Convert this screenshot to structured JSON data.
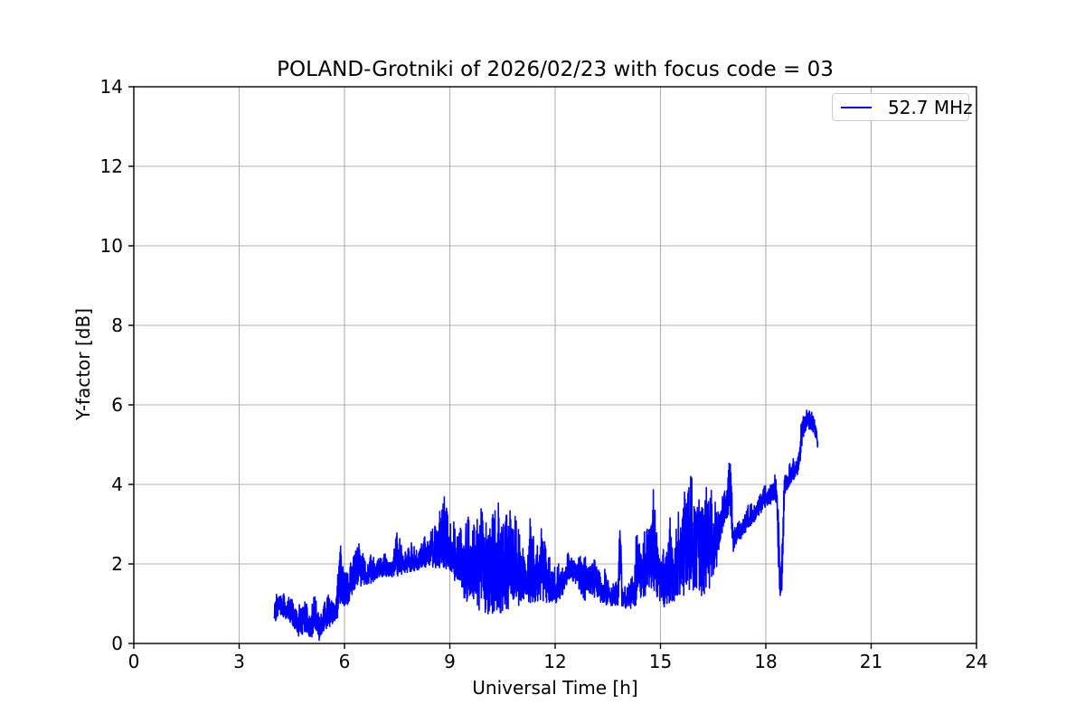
{
  "chart_data": {
    "type": "line",
    "title": "POLAND-Grotniki of 2026/02/23 with focus code = 03",
    "xlabel": "Universal Time [h]",
    "ylabel": "Y-factor [dB]",
    "xlim": [
      0,
      24
    ],
    "ylim": [
      0,
      14
    ],
    "x_ticks": [
      0,
      3,
      6,
      9,
      12,
      15,
      18,
      21,
      24
    ],
    "y_ticks": [
      0,
      2,
      4,
      6,
      8,
      10,
      12,
      14
    ],
    "grid": true,
    "grid_color": "#b0b0b0",
    "background_color": "#ffffff",
    "legend_position": "upper right",
    "series": [
      {
        "name": "52.7 MHz",
        "color": "#0000ff",
        "x_start": 4.0,
        "x_end": 19.48,
        "envelope_format": "[time_h, min_dB, max_dB] — rapidly oscillating noisy signal filling the band between min and max",
        "envelope": [
          [
            4.0,
            0.45,
            1.45
          ],
          [
            4.15,
            0.75,
            1.3
          ],
          [
            4.3,
            0.6,
            1.3
          ],
          [
            4.5,
            0.5,
            1.25
          ],
          [
            4.7,
            0.15,
            1.1
          ],
          [
            4.9,
            0.3,
            1.1
          ],
          [
            5.05,
            0.05,
            0.9
          ],
          [
            5.15,
            0.4,
            1.35
          ],
          [
            5.3,
            0.02,
            0.95
          ],
          [
            5.45,
            0.3,
            1.2
          ],
          [
            5.6,
            0.4,
            1.25
          ],
          [
            5.78,
            0.55,
            1.35
          ],
          [
            5.88,
            1.0,
            3.08
          ],
          [
            5.95,
            0.9,
            1.95
          ],
          [
            6.1,
            0.95,
            1.8
          ],
          [
            6.25,
            1.3,
            2.3
          ],
          [
            6.4,
            1.45,
            2.65
          ],
          [
            6.55,
            1.4,
            2.2
          ],
          [
            6.75,
            1.5,
            2.25
          ],
          [
            6.95,
            1.6,
            2.3
          ],
          [
            7.15,
            1.7,
            2.4
          ],
          [
            7.35,
            1.65,
            2.3
          ],
          [
            7.52,
            1.7,
            2.95
          ],
          [
            7.7,
            1.75,
            2.5
          ],
          [
            7.9,
            1.8,
            2.55
          ],
          [
            8.1,
            1.85,
            2.6
          ],
          [
            8.3,
            1.9,
            2.75
          ],
          [
            8.5,
            1.9,
            3.0
          ],
          [
            8.7,
            1.85,
            3.45
          ],
          [
            8.85,
            1.9,
            3.88
          ],
          [
            9.0,
            1.8,
            3.4
          ],
          [
            9.15,
            1.5,
            3.3
          ],
          [
            9.3,
            1.2,
            3.5
          ],
          [
            9.5,
            1.0,
            3.6
          ],
          [
            9.7,
            1.1,
            3.5
          ],
          [
            9.85,
            0.8,
            3.6
          ],
          [
            10.0,
            0.75,
            3.55
          ],
          [
            10.2,
            0.7,
            3.5
          ],
          [
            10.4,
            0.75,
            3.6
          ],
          [
            10.6,
            0.85,
            3.55
          ],
          [
            10.8,
            0.9,
            3.65
          ],
          [
            11.0,
            0.9,
            3.1
          ],
          [
            11.15,
            1.1,
            2.6
          ],
          [
            11.3,
            1.0,
            3.4
          ],
          [
            11.45,
            1.05,
            2.4
          ],
          [
            11.6,
            1.1,
            3.6
          ],
          [
            11.75,
            1.0,
            2.5
          ],
          [
            11.9,
            1.05,
            2.25
          ],
          [
            12.05,
            0.95,
            2.1
          ],
          [
            12.2,
            1.2,
            2.6
          ],
          [
            12.35,
            1.5,
            2.3
          ],
          [
            12.5,
            1.55,
            2.25
          ],
          [
            12.65,
            1.45,
            2.2
          ],
          [
            12.8,
            0.95,
            2.3
          ],
          [
            12.95,
            1.3,
            2.4
          ],
          [
            13.06,
            1.2,
            2.8
          ],
          [
            13.2,
            1.1,
            2.3
          ],
          [
            13.35,
            0.9,
            2.2
          ],
          [
            13.5,
            0.9,
            1.8
          ],
          [
            13.65,
            0.9,
            1.6
          ],
          [
            13.78,
            0.95,
            1.7
          ],
          [
            13.84,
            1.0,
            3.66
          ],
          [
            13.92,
            0.9,
            1.6
          ],
          [
            14.05,
            0.85,
            1.6
          ],
          [
            14.2,
            0.9,
            1.9
          ],
          [
            14.35,
            1.0,
            3.3
          ],
          [
            14.5,
            1.1,
            2.7
          ],
          [
            14.65,
            1.2,
            3.6
          ],
          [
            14.8,
            1.0,
            4.1
          ],
          [
            14.95,
            1.1,
            3.0
          ],
          [
            15.1,
            0.9,
            2.7
          ],
          [
            15.25,
            1.0,
            3.5
          ],
          [
            15.4,
            1.0,
            2.6
          ],
          [
            15.55,
            1.1,
            3.9
          ],
          [
            15.7,
            1.1,
            4.4
          ],
          [
            15.85,
            1.2,
            4.3
          ],
          [
            16.0,
            1.3,
            4.35
          ],
          [
            16.15,
            1.1,
            4.2
          ],
          [
            16.3,
            1.3,
            4.0
          ],
          [
            16.42,
            1.4,
            4.2
          ],
          [
            16.55,
            1.6,
            3.95
          ],
          [
            16.7,
            2.6,
            3.6
          ],
          [
            16.85,
            3.0,
            4.0
          ],
          [
            16.93,
            3.1,
            4.36
          ],
          [
            17.0,
            3.2,
            4.85
          ],
          [
            17.07,
            2.3,
            3.3
          ],
          [
            17.2,
            2.6,
            3.25
          ],
          [
            17.35,
            2.65,
            3.3
          ],
          [
            17.5,
            2.9,
            3.5
          ],
          [
            17.65,
            3.0,
            3.6
          ],
          [
            17.8,
            3.2,
            3.8
          ],
          [
            17.95,
            3.4,
            4.0
          ],
          [
            18.1,
            3.45,
            4.2
          ],
          [
            18.26,
            3.6,
            4.48
          ],
          [
            18.32,
            3.4,
            4.0
          ],
          [
            18.36,
            1.5,
            3.8
          ],
          [
            18.42,
            1.1,
            1.9
          ],
          [
            18.47,
            1.4,
            3.5
          ],
          [
            18.53,
            3.7,
            4.3
          ],
          [
            18.65,
            3.9,
            4.55
          ],
          [
            18.8,
            4.1,
            4.8
          ],
          [
            18.95,
            4.3,
            5.0
          ],
          [
            19.02,
            4.9,
            5.7
          ],
          [
            19.1,
            5.3,
            5.9
          ],
          [
            19.2,
            5.4,
            5.92
          ],
          [
            19.3,
            5.35,
            5.85
          ],
          [
            19.4,
            5.2,
            5.75
          ],
          [
            19.45,
            4.95,
            5.6
          ],
          [
            19.48,
            4.9,
            5.25
          ]
        ]
      }
    ]
  },
  "legend": {
    "label": "52.7 MHz"
  }
}
